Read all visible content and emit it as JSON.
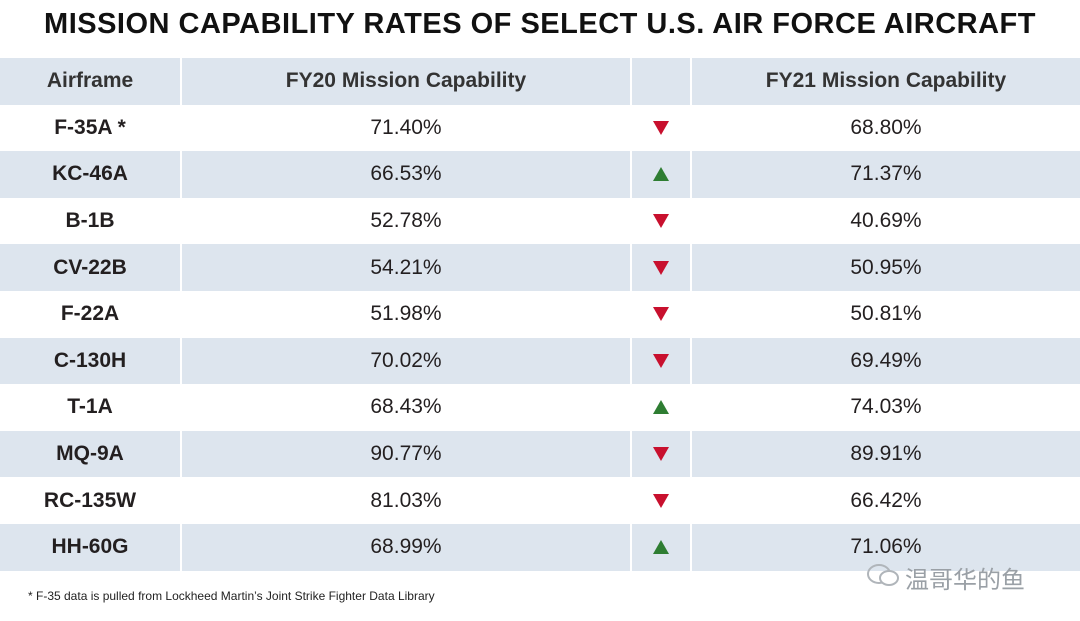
{
  "title": "MISSION CAPABILITY RATES OF SELECT U.S. AIR FORCE AIRCRAFT",
  "table": {
    "header": [
      "Airframe",
      "FY20 Mission Capability",
      "FY21 Mission Capability"
    ],
    "rows": [
      [
        "F-35A *",
        "71.40%",
        "68.80%"
      ],
      [
        "KC-46A",
        "66.53%",
        "71.37%"
      ],
      [
        "B-1B",
        "52.78%",
        "40.69%"
      ],
      [
        "CV-22B",
        "54.21%",
        "50.95%"
      ],
      [
        "F-22A",
        "51.98%",
        "50.81%"
      ],
      [
        "C-130H",
        "70.02%",
        "69.49%"
      ],
      [
        "T-1A",
        "68.43%",
        "74.03%"
      ],
      [
        "MQ-9A",
        "90.77%",
        "89.91%"
      ],
      [
        "RC-135W",
        "81.03%",
        "66.42%"
      ],
      [
        "HH-60G",
        "68.99%",
        "71.06%"
      ]
    ]
  },
  "footnote": "* F-35 data is pulled from Lockheed Martin’s Joint Strike Fighter Data Library",
  "watermark": "温哥华的鱼"
}
